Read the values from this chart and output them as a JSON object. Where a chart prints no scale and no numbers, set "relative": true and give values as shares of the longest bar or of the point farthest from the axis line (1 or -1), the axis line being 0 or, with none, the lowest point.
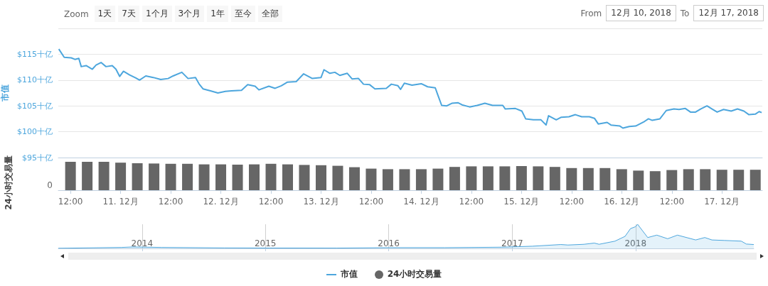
{
  "chart_data": [
    {
      "type": "line",
      "ylabel": "市值",
      "legend": "bottom",
      "grid": "y",
      "tick_labels": "y",
      "annotations": [
        "Zoom",
        "1天",
        "7天",
        "1个月",
        "3个月",
        "1年",
        "至今",
        "全部",
        "From",
        "12月 10, 2018",
        "To",
        "12月 17, 2018"
      ],
      "xlim": [
        "2018-12-10T09:05",
        "2018-12-17T09:40"
      ],
      "ylim": [
        95,
        120
      ],
      "yticks": [
        {
          "value": 95,
          "label": "$95十亿"
        },
        {
          "value": 100,
          "label": "$100十亿"
        },
        {
          "value": 105,
          "label": "$105十亿"
        },
        {
          "value": 110,
          "label": "$110十亿"
        },
        {
          "value": 115,
          "label": "$115十亿"
        },
        {
          "value": 120,
          "label": null
        }
      ],
      "x": [
        "2018-12-10T09:12",
        "2018-12-10T10:30",
        "2018-12-10T12:10",
        "2018-12-10T13:04",
        "2018-12-10T14:00",
        "2018-12-10T14:34",
        "2018-12-10T15:45",
        "2018-12-10T17:14",
        "2018-12-10T18:08",
        "2018-12-10T19:19",
        "2018-12-10T20:30",
        "2018-12-10T22:00",
        "2018-12-10T22:53",
        "2018-12-10T23:47",
        "2018-12-11T00:41",
        "2018-12-11T02:10",
        "2018-12-11T03:39",
        "2018-12-11T04:32",
        "2018-12-11T06:02",
        "2018-12-11T07:49",
        "2018-12-11T09:36",
        "2018-12-11T11:23",
        "2018-12-11T12:35",
        "2018-12-11T14:40",
        "2018-12-11T16:09",
        "2018-12-11T17:56",
        "2018-12-11T18:50",
        "2018-12-11T19:44",
        "2018-12-11T21:31",
        "2018-12-11T23:18",
        "2018-12-12T01:05",
        "2018-12-12T02:34",
        "2018-12-12T04:57",
        "2018-12-12T06:26",
        "2018-12-12T08:13",
        "2018-12-12T09:07",
        "2018-12-12T11:30",
        "2018-12-12T13:00",
        "2018-12-12T14:29",
        "2018-12-12T15:58",
        "2018-12-12T18:03",
        "2018-12-12T19:50",
        "2018-12-12T21:55",
        "2018-12-13T00:00",
        "2018-12-13T00:42",
        "2018-12-13T02:07",
        "2018-12-13T03:19",
        "2018-12-13T04:30",
        "2018-12-13T06:17",
        "2018-12-13T07:28",
        "2018-12-13T08:58",
        "2018-12-13T10:10",
        "2018-12-13T11:39",
        "2018-12-13T12:54",
        "2018-12-13T15:37",
        "2018-12-13T16:50",
        "2018-12-13T18:25",
        "2018-12-13T19:02",
        "2018-12-13T19:57",
        "2018-12-13T21:47",
        "2018-12-14T00:00",
        "2018-12-14T01:31",
        "2018-12-14T03:21",
        "2018-12-14T03:58",
        "2018-12-14T04:53",
        "2018-12-14T06:06",
        "2018-12-14T07:19",
        "2018-12-14T08:50",
        "2018-12-14T09:45",
        "2018-12-14T11:35",
        "2018-12-14T13:24",
        "2018-12-14T15:14",
        "2018-12-14T17:04",
        "2018-12-14T19:31",
        "2018-12-14T20:07",
        "2018-12-14T22:33",
        "2018-12-15T00:05",
        "2018-12-15T01:00",
        "2018-12-15T02:50",
        "2018-12-15T04:40",
        "2018-12-15T05:53",
        "2018-12-15T06:29",
        "2018-12-15T08:19",
        "2018-12-15T09:32",
        "2018-12-15T11:22",
        "2018-12-15T12:54",
        "2018-12-15T14:25",
        "2018-12-15T16:15",
        "2018-12-15T17:28",
        "2018-12-15T18:23",
        "2018-12-15T20:30",
        "2018-12-15T21:25",
        "2018-12-15T23:33",
        "2018-12-16T00:17",
        "2018-12-16T01:49",
        "2018-12-16T03:21",
        "2018-12-16T05:29",
        "2018-12-16T06:24",
        "2018-12-16T07:19",
        "2018-12-16T09:09",
        "2018-12-16T10:40",
        "2018-12-16T12:30",
        "2018-12-16T13:43",
        "2018-12-16T15:14",
        "2018-12-16T16:28",
        "2018-12-16T17:41",
        "2018-12-16T18:54",
        "2018-12-16T20:25",
        "2018-12-16T21:38",
        "2018-12-16T22:51",
        "2018-12-17T00:23",
        "2018-12-17T02:13",
        "2018-12-17T03:44",
        "2018-12-17T05:15",
        "2018-12-17T06:28",
        "2018-12-17T07:59",
        "2018-12-17T08:54",
        "2018-12-17T09:31"
      ],
      "series": [
        {
          "name": "市值",
          "color": "#4da6dd",
          "values": [
            116.0,
            114.4,
            114.3,
            114.0,
            114.2,
            112.6,
            112.8,
            112.1,
            112.9,
            113.4,
            112.6,
            112.8,
            112.1,
            110.7,
            111.7,
            111.0,
            110.4,
            110.0,
            110.8,
            110.5,
            110.1,
            110.3,
            110.8,
            111.5,
            110.3,
            110.5,
            109.2,
            108.3,
            107.9,
            107.5,
            107.8,
            107.9,
            108.0,
            109.1,
            108.8,
            108.1,
            108.8,
            108.4,
            108.9,
            109.6,
            109.7,
            111.2,
            110.3,
            110.5,
            112.0,
            111.3,
            111.5,
            110.9,
            111.3,
            110.2,
            110.3,
            109.2,
            109.1,
            108.3,
            108.4,
            109.2,
            108.9,
            108.2,
            109.4,
            109.0,
            109.3,
            108.7,
            108.5,
            107.1,
            105.1,
            105.0,
            105.5,
            105.6,
            105.2,
            104.8,
            105.1,
            105.5,
            105.1,
            105.1,
            104.4,
            104.5,
            104.0,
            102.5,
            102.3,
            102.3,
            101.3,
            103.1,
            102.3,
            102.8,
            102.9,
            103.3,
            102.9,
            102.9,
            102.6,
            101.5,
            101.8,
            101.3,
            101.1,
            100.7,
            101.0,
            101.1,
            102.0,
            102.5,
            102.2,
            102.5,
            104.1,
            104.4,
            104.3,
            104.5,
            103.8,
            103.8,
            104.4,
            105.0,
            104.4,
            103.8,
            104.3,
            104.0,
            104.4,
            104.0,
            103.3,
            103.4,
            103.9,
            103.7
          ]
        }
      ]
    },
    {
      "type": "bar",
      "ylabel": "24小时交易量",
      "legend": "bottom",
      "relative": true,
      "tick_labels": "x",
      "annotations": [
        "0"
      ],
      "xlim": [
        "2018-12-10T09:05",
        "2018-12-17T09:40"
      ],
      "xticks": [
        {
          "value": "2018-12-10T12:00",
          "label": "12:00"
        },
        {
          "value": "2018-12-11",
          "label": "11. 12月"
        },
        {
          "value": "2018-12-11T12:00",
          "label": "12:00"
        },
        {
          "value": "2018-12-12",
          "label": "12. 12月"
        },
        {
          "value": "2018-12-12T12:00",
          "label": "12:00"
        },
        {
          "value": "2018-12-13",
          "label": "13. 12月"
        },
        {
          "value": "2018-12-13T12:00",
          "label": "12:00"
        },
        {
          "value": "2018-12-14",
          "label": "14. 12月"
        },
        {
          "value": "2018-12-14T12:00",
          "label": "12:00"
        },
        {
          "value": "2018-12-15",
          "label": "15. 12月"
        },
        {
          "value": "2018-12-15T12:00",
          "label": "12:00"
        },
        {
          "value": "2018-12-16",
          "label": "16. 12月"
        },
        {
          "value": "2018-12-16T12:00",
          "label": "12:00"
        },
        {
          "value": "2018-12-17",
          "label": "17. 12月"
        }
      ],
      "x": [
        "2018-12-10T12:00",
        "2018-12-10T16:00",
        "2018-12-10T20:00",
        "2018-12-11T00:00",
        "2018-12-11T04:00",
        "2018-12-11T08:00",
        "2018-12-11T12:00",
        "2018-12-11T16:00",
        "2018-12-11T20:00",
        "2018-12-12T00:00",
        "2018-12-12T04:00",
        "2018-12-12T08:00",
        "2018-12-12T12:00",
        "2018-12-12T16:00",
        "2018-12-12T20:00",
        "2018-12-13T00:00",
        "2018-12-13T04:00",
        "2018-12-13T08:00",
        "2018-12-13T12:00",
        "2018-12-13T16:00",
        "2018-12-13T20:00",
        "2018-12-14T00:00",
        "2018-12-14T04:00",
        "2018-12-14T08:00",
        "2018-12-14T12:00",
        "2018-12-14T16:00",
        "2018-12-14T20:00",
        "2018-12-15T00:00",
        "2018-12-15T04:00",
        "2018-12-15T08:00",
        "2018-12-15T12:00",
        "2018-12-15T16:00",
        "2018-12-15T20:00",
        "2018-12-16T00:00",
        "2018-12-16T04:00",
        "2018-12-16T08:00",
        "2018-12-16T12:00",
        "2018-12-16T16:00",
        "2018-12-16T20:00",
        "2018-12-17T00:00",
        "2018-12-17T04:00",
        "2018-12-17T08:00"
      ],
      "series": [
        {
          "name": "24小时交易量",
          "color": "#666666",
          "values": [
            1.0,
            1.0,
            1.0,
            0.97,
            0.95,
            0.94,
            0.93,
            0.93,
            0.91,
            0.91,
            0.9,
            0.91,
            0.93,
            0.91,
            0.89,
            0.88,
            0.86,
            0.81,
            0.76,
            0.74,
            0.74,
            0.74,
            0.76,
            0.82,
            0.84,
            0.84,
            0.84,
            0.85,
            0.84,
            0.82,
            0.78,
            0.78,
            0.78,
            0.74,
            0.69,
            0.67,
            0.71,
            0.74,
            0.74,
            0.72,
            0.72,
            0.72
          ]
        }
      ]
    },
    {
      "type": "area",
      "relative": true,
      "grid": "x",
      "tick_labels": "x",
      "xlim": [
        "2013-04-28",
        "2018-12-17"
      ],
      "xticks": [
        "2014",
        "2015",
        "2016",
        "2017",
        "2018"
      ],
      "x": [
        "2013-04-28",
        "2013-11-01",
        "2013-12-05",
        "2014-03-01",
        "2014-09-01",
        "2015-01-15",
        "2015-08-01",
        "2016-01-01",
        "2016-06-15",
        "2016-12-01",
        "2017-03-01",
        "2017-05-25",
        "2017-06-15",
        "2017-08-01",
        "2017-09-01",
        "2017-09-15",
        "2017-11-01",
        "2017-12-01",
        "2017-12-17",
        "2018-01-01",
        "2018-01-07",
        "2018-02-06",
        "2018-03-05",
        "2018-04-06",
        "2018-05-05",
        "2018-06-28",
        "2018-07-25",
        "2018-08-15",
        "2018-09-20",
        "2018-11-10",
        "2018-11-25",
        "2018-12-17"
      ],
      "series": [
        {
          "color": "#4da6dd",
          "values": [
            0.005,
            0.04,
            0.06,
            0.04,
            0.02,
            0.015,
            0.012,
            0.03,
            0.03,
            0.05,
            0.09,
            0.16,
            0.14,
            0.17,
            0.22,
            0.17,
            0.3,
            0.5,
            0.82,
            0.9,
            1,
            0.45,
            0.55,
            0.4,
            0.55,
            0.35,
            0.45,
            0.35,
            0.33,
            0.3,
            0.18,
            0.16
          ]
        }
      ]
    }
  ]
}
